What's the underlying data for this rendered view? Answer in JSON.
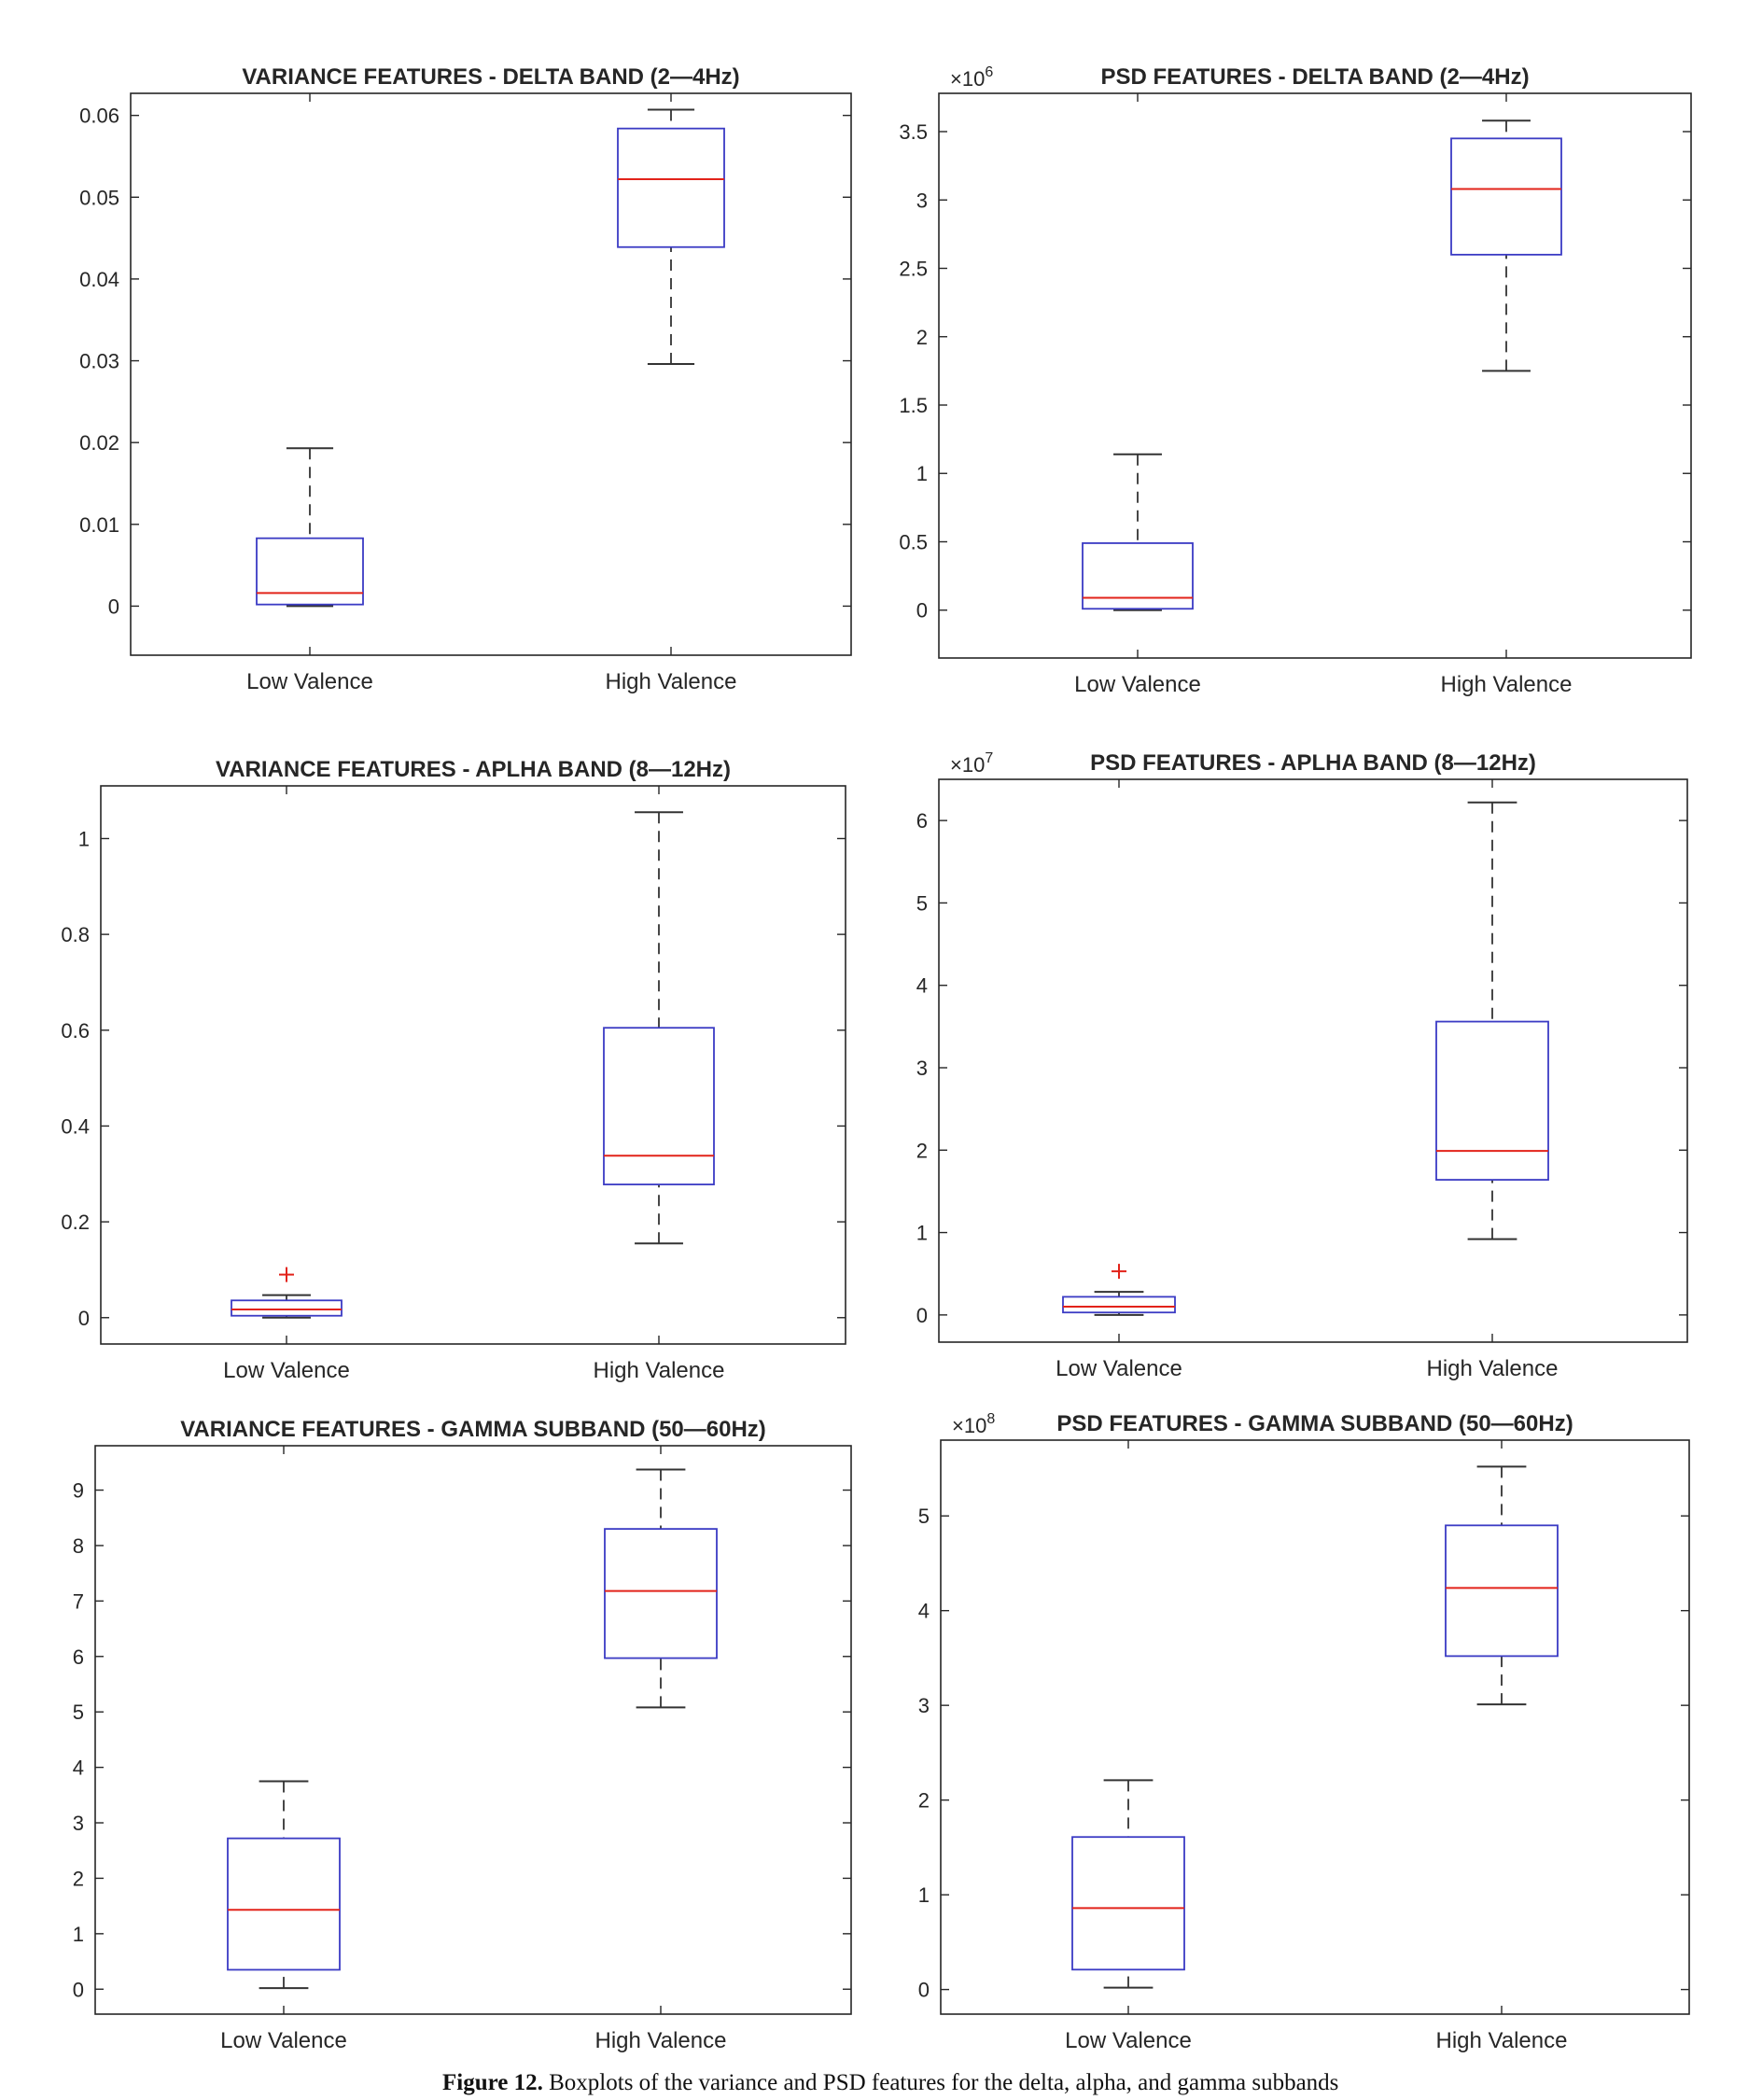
{
  "caption": {
    "label": "Figure 12.",
    "text": " Boxplots of the variance and PSD features for the delta, alpha, and gamma subbands"
  },
  "chart_data": [
    {
      "type": "box",
      "title": "VARIANCE FEATURES - DELTA BAND (2—4Hz)",
      "exponent": "",
      "categories": [
        "Low Valence",
        "High Valence"
      ],
      "ylim": [
        -0.006,
        0.0627
      ],
      "yticks": [
        0,
        0.01,
        0.02,
        0.03,
        0.04,
        0.05,
        0.06
      ],
      "ytick_labels": [
        "0",
        "0.01",
        "0.02",
        "0.03",
        "0.04",
        "0.05",
        "0.06"
      ],
      "series": [
        {
          "whisker_low": 0.0,
          "q1": 0.0002,
          "median": 0.0016,
          "q3": 0.0083,
          "whisker_high": 0.0193,
          "outliers": []
        },
        {
          "whisker_low": 0.0296,
          "q1": 0.0439,
          "median": 0.0522,
          "q3": 0.0584,
          "whisker_high": 0.0607,
          "outliers": []
        }
      ],
      "colors": {
        "box": "#3b3bc4",
        "median": "#e2231a",
        "whisker": "#333333",
        "outlier": "#e2231a"
      }
    },
    {
      "type": "box",
      "title": "PSD FEATURES - DELTA BAND (2—4Hz)",
      "exponent": "6",
      "categories": [
        "Low Valence",
        "High Valence"
      ],
      "ylim": [
        -0.35,
        3.78
      ],
      "yticks": [
        0,
        0.5,
        1,
        1.5,
        2,
        2.5,
        3,
        3.5
      ],
      "ytick_labels": [
        "0",
        "0.5",
        "1",
        "1.5",
        "2",
        "2.5",
        "3",
        "3.5"
      ],
      "series": [
        {
          "whisker_low": 0.0,
          "q1": 0.01,
          "median": 0.09,
          "q3": 0.49,
          "whisker_high": 1.14,
          "outliers": []
        },
        {
          "whisker_low": 1.75,
          "q1": 2.6,
          "median": 3.08,
          "q3": 3.45,
          "whisker_high": 3.58,
          "outliers": []
        }
      ],
      "colors": {
        "box": "#3b3bc4",
        "median": "#e2231a",
        "whisker": "#333333",
        "outlier": "#e2231a"
      }
    },
    {
      "type": "box",
      "title": "VARIANCE FEATURES - APLHA BAND (8—12Hz)",
      "exponent": "",
      "categories": [
        "Low Valence",
        "High Valence"
      ],
      "ylim": [
        -0.055,
        1.11
      ],
      "yticks": [
        0,
        0.2,
        0.4,
        0.6,
        0.8,
        1
      ],
      "ytick_labels": [
        "0",
        "0.2",
        "0.4",
        "0.6",
        "0.8",
        "1"
      ],
      "series": [
        {
          "whisker_low": 0.0,
          "q1": 0.004,
          "median": 0.017,
          "q3": 0.036,
          "whisker_high": 0.047,
          "outliers": [
            0.09
          ]
        },
        {
          "whisker_low": 0.155,
          "q1": 0.278,
          "median": 0.338,
          "q3": 0.605,
          "whisker_high": 1.055,
          "outliers": []
        }
      ],
      "colors": {
        "box": "#3b3bc4",
        "median": "#e2231a",
        "whisker": "#333333",
        "outlier": "#e2231a"
      }
    },
    {
      "type": "box",
      "title": "PSD FEATURES - APLHA BAND (8—12Hz)",
      "exponent": "7",
      "categories": [
        "Low Valence",
        "High Valence"
      ],
      "ylim": [
        -0.33,
        6.5
      ],
      "yticks": [
        0,
        1,
        2,
        3,
        4,
        5,
        6
      ],
      "ytick_labels": [
        "0",
        "1",
        "2",
        "3",
        "4",
        "5",
        "6"
      ],
      "series": [
        {
          "whisker_low": 0.0,
          "q1": 0.03,
          "median": 0.1,
          "q3": 0.22,
          "whisker_high": 0.28,
          "outliers": [
            0.53
          ]
        },
        {
          "whisker_low": 0.92,
          "q1": 1.64,
          "median": 1.99,
          "q3": 3.56,
          "whisker_high": 6.22,
          "outliers": []
        }
      ],
      "colors": {
        "box": "#3b3bc4",
        "median": "#e2231a",
        "whisker": "#333333",
        "outlier": "#e2231a"
      }
    },
    {
      "type": "box",
      "title": "VARIANCE FEATURES - GAMMA SUBBAND (50—60Hz)",
      "exponent": "",
      "categories": [
        "Low Valence",
        "High Valence"
      ],
      "ylim": [
        -0.45,
        9.8
      ],
      "yticks": [
        0,
        1,
        2,
        3,
        4,
        5,
        6,
        7,
        8,
        9
      ],
      "ytick_labels": [
        "0",
        "1",
        "2",
        "3",
        "4",
        "5",
        "6",
        "7",
        "8",
        "9"
      ],
      "series": [
        {
          "whisker_low": 0.02,
          "q1": 0.35,
          "median": 1.43,
          "q3": 2.72,
          "whisker_high": 3.75,
          "outliers": []
        },
        {
          "whisker_low": 5.08,
          "q1": 5.97,
          "median": 7.18,
          "q3": 8.3,
          "whisker_high": 9.37,
          "outliers": []
        }
      ],
      "colors": {
        "box": "#3b3bc4",
        "median": "#e2231a",
        "whisker": "#333333",
        "outlier": "#e2231a"
      }
    },
    {
      "type": "box",
      "title": "PSD FEATURES - GAMMA SUBBAND (50—60Hz)",
      "exponent": "8",
      "categories": [
        "Low Valence",
        "High Valence"
      ],
      "ylim": [
        -0.26,
        5.8
      ],
      "yticks": [
        0,
        1,
        2,
        3,
        4,
        5
      ],
      "ytick_labels": [
        "0",
        "1",
        "2",
        "3",
        "4",
        "5"
      ],
      "series": [
        {
          "whisker_low": 0.02,
          "q1": 0.21,
          "median": 0.86,
          "q3": 1.61,
          "whisker_high": 2.21,
          "outliers": []
        },
        {
          "whisker_low": 3.01,
          "q1": 3.52,
          "median": 4.24,
          "q3": 4.9,
          "whisker_high": 5.52,
          "outliers": []
        }
      ],
      "colors": {
        "box": "#3b3bc4",
        "median": "#e2231a",
        "whisker": "#333333",
        "outlier": "#e2231a"
      }
    }
  ]
}
